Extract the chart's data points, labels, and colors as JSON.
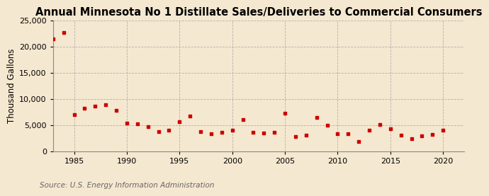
{
  "title": "Annual Minnesota No 1 Distillate Sales/Deliveries to Commercial Consumers",
  "ylabel": "Thousand Gallons",
  "source": "Source: U.S. Energy Information Administration",
  "background_color": "#f5e8d0",
  "plot_bg_color": "#f5e8d0",
  "dot_color": "#cc0000",
  "years": [
    1983,
    1984,
    1985,
    1986,
    1987,
    1988,
    1989,
    1990,
    1991,
    1992,
    1993,
    1994,
    1995,
    1996,
    1997,
    1998,
    1999,
    2000,
    2001,
    2002,
    2003,
    2004,
    2005,
    2006,
    2007,
    2008,
    2009,
    2010,
    2011,
    2012,
    2013,
    2014,
    2015,
    2016,
    2017,
    2018,
    2019,
    2020
  ],
  "values": [
    21500,
    22700,
    7000,
    8200,
    8600,
    8900,
    7800,
    5400,
    5200,
    4700,
    3800,
    4000,
    5600,
    6700,
    3800,
    3400,
    3600,
    4000,
    6000,
    3600,
    3500,
    3600,
    7200,
    2800,
    3100,
    6500,
    4900,
    3300,
    3400,
    1900,
    4000,
    5100,
    4300,
    3100,
    2400,
    3000,
    3200,
    4000
  ],
  "xlim": [
    1983,
    2022
  ],
  "ylim": [
    0,
    25000
  ],
  "yticks": [
    0,
    5000,
    10000,
    15000,
    20000,
    25000
  ],
  "xticks": [
    1985,
    1990,
    1995,
    2000,
    2005,
    2010,
    2015,
    2020
  ],
  "title_fontsize": 10.5,
  "label_fontsize": 8.5,
  "tick_fontsize": 8,
  "source_fontsize": 7.5,
  "grid_color": "#aaaaaa",
  "spine_color": "#888888"
}
